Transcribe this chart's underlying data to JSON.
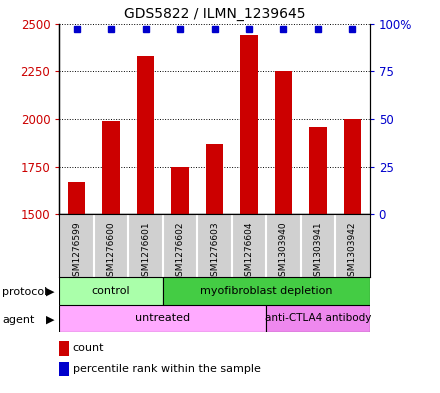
{
  "title": "GDS5822 / ILMN_1239645",
  "samples": [
    "GSM1276599",
    "GSM1276600",
    "GSM1276601",
    "GSM1276602",
    "GSM1276603",
    "GSM1276604",
    "GSM1303940",
    "GSM1303941",
    "GSM1303942"
  ],
  "counts": [
    1670,
    1990,
    2330,
    1745,
    1870,
    2440,
    2250,
    1960,
    2000
  ],
  "percentiles": [
    97,
    97,
    97,
    97,
    97,
    97,
    97,
    97,
    97
  ],
  "ylim_left": [
    1500,
    2500
  ],
  "ylim_right": [
    0,
    100
  ],
  "yticks_left": [
    1500,
    1750,
    2000,
    2250,
    2500
  ],
  "yticks_right": [
    0,
    25,
    50,
    75,
    100
  ],
  "ytick_labels_right": [
    "0",
    "25",
    "50",
    "75",
    "100%"
  ],
  "bar_color": "#cc0000",
  "dot_color": "#0000cc",
  "bg_color": "#ffffff",
  "tick_label_color_left": "#cc0000",
  "tick_label_color_right": "#0000cc",
  "bar_width": 0.5,
  "protocol_control_color": "#aaffaa",
  "protocol_myo_color": "#44cc44",
  "agent_untreated_color": "#ffaaff",
  "agent_anti_color": "#ee88ee",
  "gray_band_color": "#d0d0d0"
}
